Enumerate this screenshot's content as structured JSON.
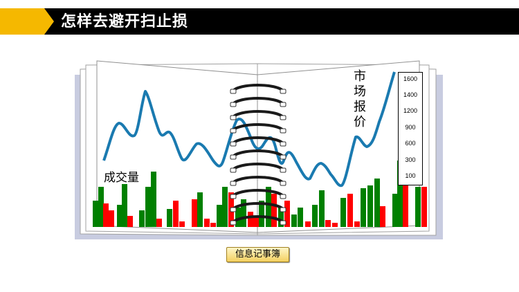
{
  "header": {
    "title": "怎样去避开扫止损"
  },
  "illustration": {
    "price_label": "市场报价",
    "volume_label": "成交量",
    "scale_ticks": [
      "1600",
      "1400",
      "1200",
      "900",
      "600",
      "300",
      "100"
    ]
  },
  "notebook_button": {
    "label": "信息记事簿"
  },
  "colors": {
    "accent": "#f5b800",
    "price_line": "#1a7ab0",
    "volume_up": "#008000",
    "volume_down": "#ff0000",
    "page_shadow": "#c8cce0"
  }
}
